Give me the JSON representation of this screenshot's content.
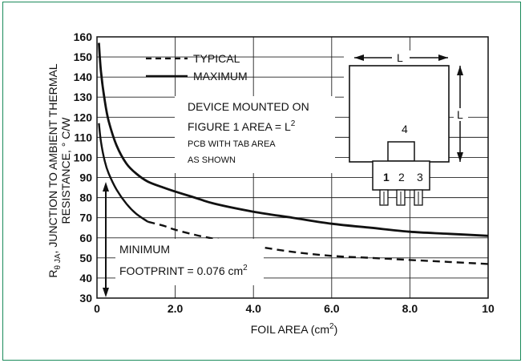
{
  "chart_data": {
    "type": "line",
    "xlabel": "FOIL AREA (cm",
    "xlabel_sup": "2",
    "xlabel_end": ")",
    "ylabel": "R",
    "ylabel_sub": "θ JA",
    "ylabel_rest": ", JUNCTION TO AMBIENT THERMAL",
    "ylabel_line2": "RESISTANCE, ° C/W",
    "xlim": [
      0,
      10
    ],
    "ylim": [
      30,
      160
    ],
    "x_ticks": [
      "0",
      "2.0",
      "4.0",
      "6.0",
      "8.0",
      "10"
    ],
    "y_ticks": [
      "30",
      "40",
      "50",
      "60",
      "70",
      "80",
      "90",
      "100",
      "110",
      "120",
      "130",
      "140",
      "150",
      "160"
    ],
    "grid": true,
    "legend": [
      {
        "name": "TYPICAL",
        "style": "dashed"
      },
      {
        "name": "MAXIMUM",
        "style": "solid"
      }
    ],
    "series": [
      {
        "name": "MAXIMUM",
        "style": "solid",
        "x": [
          0.05,
          0.1,
          0.2,
          0.3,
          0.5,
          0.75,
          1.0,
          1.3,
          1.7,
          2.0,
          2.5,
          3.0,
          4.0,
          5.0,
          6.0,
          7.0,
          8.0,
          9.0,
          10.0
        ],
        "y": [
          157,
          143,
          128,
          118,
          106,
          97,
          92,
          88,
          85,
          83,
          80,
          77,
          73,
          70,
          67,
          65,
          63,
          62,
          61
        ]
      },
      {
        "name": "TYPICAL",
        "style": "solid-then-dashed",
        "x": [
          0.05,
          0.1,
          0.2,
          0.3,
          0.5,
          0.75,
          1.0,
          1.3,
          1.7,
          2.0,
          2.5,
          3.0,
          4.0,
          5.0,
          6.0,
          7.0,
          8.0,
          9.0,
          10.0
        ],
        "y": [
          117,
          108,
          98,
          92,
          84,
          77,
          72,
          68,
          66,
          64,
          61.5,
          59.5,
          56,
          53,
          51,
          50,
          49,
          48,
          47
        ],
        "dashed_from_x": 1.3
      }
    ],
    "annotations": {
      "device_line1": "DEVICE MOUNTED ON",
      "device_line2": "FIGURE 1 AREA = L",
      "device_line2_sup": "2",
      "device_line3": "PCB WITH TAB AREA",
      "device_line4": "AS SHOWN",
      "min_line1": "MINIMUM",
      "min_line2": "FOOTPRINT = 0.076 cm",
      "min_line2_sup": "2",
      "pkg_L_top": "L",
      "pkg_L_side": "L",
      "pkg_pin4": "4",
      "pkg_pin1": "1",
      "pkg_pin2": "2",
      "pkg_pin3": "3"
    }
  }
}
